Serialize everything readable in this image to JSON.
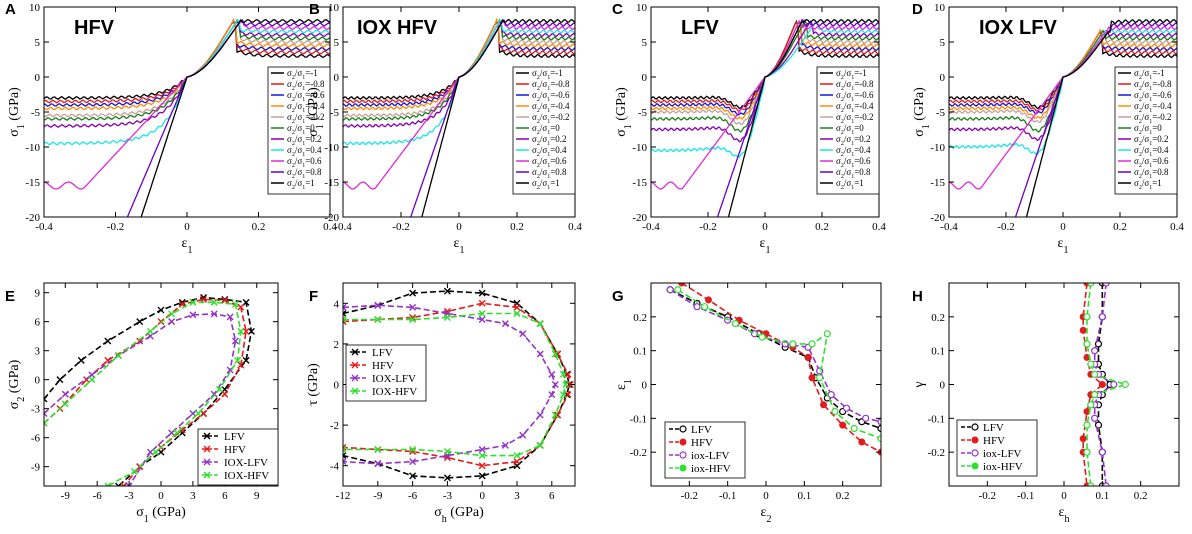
{
  "figure": {
    "panel_letters": [
      "A",
      "B",
      "C",
      "D",
      "E",
      "F",
      "G",
      "H"
    ]
  },
  "colors": {
    "ratio_palette": [
      "#000000",
      "#e41a1c",
      "#1515d8",
      "#ff8c00",
      "#c8a09a",
      "#1a7f1a",
      "#8a00b0",
      "#18e6e6",
      "#e02ad6",
      "#6a00c8"
    ],
    "LFV": "#000000",
    "HFV": "#e41a1c",
    "IOX-LFV": "#9333c7",
    "IOX-HFV": "#2ee02e"
  },
  "chart_data": [
    {
      "panel": "A",
      "type": "line",
      "title": "HFV",
      "xlabel": "ε1",
      "ylabel": "σ1 (GPa)",
      "xlim": [
        -0.4,
        0.4
      ],
      "ylim": [
        -20,
        10
      ],
      "xticks": [
        "-0.4",
        "-0.2",
        "0",
        "0.2",
        "0.4"
      ],
      "yticks": [
        "-20",
        "-15",
        "-10",
        "-5",
        "0",
        "5",
        "10"
      ],
      "legend": [
        "σ2/σ1=-1",
        "σ2/σ1=-0.8",
        "σ2/σ1=-0.6",
        "σ2/σ1=-0.4",
        "σ2/σ1=-0.2",
        "σ2/σ1=0",
        "σ2/σ1=0.2",
        "σ2/σ1=0.4",
        "σ2/σ1=0.6",
        "σ2/σ1=0.8",
        "σ2/σ1=1"
      ],
      "ratios": [
        -1,
        -0.8,
        -0.6,
        -0.4,
        -0.2,
        0,
        0.2,
        0.4,
        0.6,
        0.8,
        1
      ],
      "series_params": {
        "tension_plateau": [
          3,
          3.5,
          4,
          4.5,
          5,
          5.5,
          6,
          6.5,
          7,
          7.5,
          8
        ],
        "peak_strain": [
          0.13,
          0.13,
          0.13,
          0.13,
          0.14,
          0.14,
          0.14,
          0.14,
          0.15,
          0.15,
          0.15
        ],
        "peak_stress": [
          8,
          8,
          8,
          8,
          8,
          8,
          8,
          8,
          8,
          8,
          8
        ],
        "compression_plateau": [
          -3,
          -3.5,
          -4,
          -4.5,
          -5.5,
          -6,
          -7,
          -9.5,
          -15,
          -20,
          -20
        ],
        "compression_dip": [
          0,
          0,
          0,
          0,
          0,
          0,
          0,
          0,
          0,
          0,
          0
        ]
      }
    },
    {
      "panel": "B",
      "type": "line",
      "title": "IOX HFV",
      "xlabel": "ε1",
      "ylabel": "σ1 (GPa)",
      "xlim": [
        -0.4,
        0.4
      ],
      "ylim": [
        -20,
        10
      ],
      "xticks": [
        "-0.4",
        "-0.2",
        "0",
        "0.2",
        "0.4"
      ],
      "yticks": [
        "-20",
        "-15",
        "-10",
        "-5",
        "0",
        "5",
        "10"
      ],
      "legend": [
        "σ2/σ1=-1",
        "σ2/σ1=-0.8",
        "σ2/σ1=-0.6",
        "σ2/σ1=-0.4",
        "σ2/σ1=-0.2",
        "σ2/σ1=0",
        "σ2/σ1=0.2",
        "σ2/σ1=0.4",
        "σ2/σ1=0.6",
        "σ2/σ1=0.8",
        "σ2/σ1=1"
      ],
      "ratios": [
        -1,
        -0.8,
        -0.6,
        -0.4,
        -0.2,
        0,
        0.2,
        0.4,
        0.6,
        0.8,
        1
      ],
      "series_params": {
        "tension_plateau": [
          3,
          3.5,
          4,
          4.5,
          5,
          5.5,
          6,
          6.5,
          7,
          7.5,
          8
        ],
        "peak_strain": [
          0.13,
          0.13,
          0.13,
          0.13,
          0.14,
          0.14,
          0.14,
          0.14,
          0.15,
          0.15,
          0.15
        ],
        "peak_stress": [
          8,
          8,
          8,
          8,
          8,
          8,
          8,
          8,
          8,
          8,
          8
        ],
        "compression_plateau": [
          -3,
          -3.5,
          -4,
          -4.5,
          -5.5,
          -6,
          -7,
          -9.5,
          -15,
          -20,
          -20
        ],
        "compression_dip": [
          0,
          0,
          0,
          0,
          0,
          0,
          0,
          0,
          0,
          0,
          0
        ]
      }
    },
    {
      "panel": "C",
      "type": "line",
      "title": "LFV",
      "xlabel": "ε1",
      "ylabel": "σ1 (GPa)",
      "xlim": [
        -0.4,
        0.4
      ],
      "ylim": [
        -20,
        10
      ],
      "xticks": [
        "-0.4",
        "-0.2",
        "0",
        "0.2",
        "0.4"
      ],
      "yticks": [
        "-20",
        "-15",
        "-10",
        "-5",
        "0",
        "5",
        "10"
      ],
      "legend": [
        "σ2/σ1=-1",
        "σ2/σ1=-0.8",
        "σ2/σ1=-0.6",
        "σ2/σ1=-0.4",
        "σ2/σ1=-0.2",
        "σ2/σ1=0",
        "σ2/σ1=0.2",
        "σ2/σ1=0.4",
        "σ2/σ1=0.6",
        "σ2/σ1=0.8",
        "σ2/σ1=1"
      ],
      "ratios": [
        -1,
        -0.8,
        -0.6,
        -0.4,
        -0.2,
        0,
        0.2,
        0.4,
        0.6,
        0.8,
        1
      ],
      "series_params": {
        "tension_plateau": [
          3,
          3.5,
          4,
          4.5,
          5,
          5.5,
          6,
          6.5,
          7,
          7.5,
          8
        ],
        "peak_strain": [
          0.11,
          0.11,
          0.12,
          0.12,
          0.13,
          0.14,
          0.16,
          0.18,
          0.12,
          0.13,
          0.13
        ],
        "peak_stress": [
          8,
          8,
          8,
          8,
          8,
          8,
          8,
          8,
          8,
          8,
          8
        ],
        "compression_plateau": [
          -3,
          -3.5,
          -4,
          -4.5,
          -5,
          -6,
          -7.5,
          -10.5,
          -15,
          -20,
          -20
        ],
        "compression_dip": [
          -2,
          -2,
          -2.2,
          -2.4,
          -2.8,
          -3,
          -3.2,
          -3,
          -3,
          0,
          0
        ]
      }
    },
    {
      "panel": "D",
      "type": "line",
      "title": "IOX LFV",
      "xlabel": "ε1",
      "ylabel": "σ1 (GPa)",
      "xlim": [
        -0.4,
        0.4
      ],
      "ylim": [
        -20,
        10
      ],
      "xticks": [
        "-0.4",
        "-0.2",
        "0",
        "0.2",
        "0.4"
      ],
      "yticks": [
        "-20",
        "-15",
        "-10",
        "-5",
        "0",
        "5",
        "10"
      ],
      "legend": [
        "σ2/σ1=-1",
        "σ2/σ1=-0.8",
        "σ2/σ1=-0.6",
        "σ2/σ1=-0.4",
        "σ2/σ1=-0.2",
        "σ2/σ1=0",
        "σ2/σ1=0.2",
        "σ2/σ1=0.4",
        "σ2/σ1=0.6",
        "σ2/σ1=0.8",
        "σ2/σ1=1"
      ],
      "ratios": [
        -1,
        -0.8,
        -0.6,
        -0.4,
        -0.2,
        0,
        0.2,
        0.4,
        0.6,
        0.8,
        1
      ],
      "series_params": {
        "tension_plateau": [
          3,
          3.5,
          4,
          4.5,
          5,
          5.5,
          6,
          6.5,
          7,
          7.5,
          8
        ],
        "peak_strain": [
          0.13,
          0.13,
          0.13,
          0.13,
          0.14,
          0.14,
          0.15,
          0.15,
          0.15,
          0.16,
          0.16
        ],
        "peak_stress": [
          6.5,
          6.5,
          6.5,
          6.5,
          6.5,
          6.5,
          6.5,
          6.5,
          6.5,
          6.5,
          6.5
        ],
        "compression_plateau": [
          -3,
          -3.5,
          -4,
          -4.5,
          -5,
          -6,
          -7.5,
          -10,
          -15,
          -20,
          -20
        ],
        "compression_dip": [
          -2,
          -2,
          -2,
          -2.3,
          -2.5,
          -3,
          -3,
          -3,
          -3,
          0,
          0
        ]
      }
    },
    {
      "panel": "E",
      "type": "line",
      "xlabel": "σ1 (GPa)",
      "ylabel": "σ2 (GPa)",
      "xlim": [
        -11,
        11
      ],
      "ylim": [
        -11,
        10
      ],
      "xticks": [
        "-9",
        "-6",
        "-3",
        "0",
        "3",
        "6",
        "9"
      ],
      "yticks": [
        "-9",
        "-6",
        "-3",
        "0",
        "3",
        "6",
        "9"
      ],
      "legend": [
        "LFV",
        "HFV",
        "IOX-LFV",
        "IOX-HFV"
      ],
      "series": [
        {
          "name": "LFV",
          "x": [
            -11,
            -9.5,
            -7.5,
            -5,
            -2,
            0,
            2,
            4,
            6,
            8,
            8.5,
            8,
            6,
            4,
            2,
            0,
            -2,
            -4
          ],
          "y": [
            -2,
            0,
            2,
            4,
            6,
            7.2,
            8,
            8.5,
            8.3,
            8,
            5,
            2,
            -1,
            -3.5,
            -5.5,
            -7.5,
            -9,
            -11
          ]
        },
        {
          "name": "HFV",
          "x": [
            -11,
            -9.5,
            -7,
            -5,
            -2,
            0,
            2,
            4,
            6,
            7.5,
            8,
            7.5,
            6,
            4,
            2,
            0,
            -2,
            -3.5
          ],
          "y": [
            -4.5,
            -3,
            0,
            2,
            4,
            6,
            7.8,
            8.3,
            8.2,
            7.5,
            5,
            1.5,
            -1.5,
            -3.5,
            -5.2,
            -7,
            -9,
            -11
          ]
        },
        {
          "name": "IOX-LFV",
          "x": [
            -11,
            -9,
            -6.5,
            -4,
            -1,
            1,
            3,
            5,
            6.5,
            7,
            6.5,
            5,
            3,
            1,
            -1,
            -3
          ],
          "y": [
            -3.5,
            -1.5,
            0.5,
            2.5,
            4.5,
            6,
            6.7,
            6.8,
            6.5,
            4,
            1,
            -1.5,
            -3.5,
            -5.5,
            -7.5,
            -11
          ]
        },
        {
          "name": "IOX-HFV",
          "x": [
            -11,
            -9,
            -6.5,
            -4,
            -1,
            1,
            3,
            5,
            7,
            7.5,
            7.2,
            5.5,
            3.5,
            1.5,
            -0.5,
            -2.5,
            -5
          ],
          "y": [
            -4.5,
            -2.5,
            0,
            2.5,
            5,
            6.8,
            8,
            8,
            7.8,
            5,
            2,
            -1,
            -3.5,
            -5.5,
            -7.5,
            -9.5,
            -11
          ]
        }
      ]
    },
    {
      "panel": "F",
      "type": "line",
      "xlabel": "σh (GPa)",
      "ylabel": "τ (GPa)",
      "xlim": [
        -12,
        8
      ],
      "ylim": [
        -5,
        5
      ],
      "xticks": [
        "-12",
        "-9",
        "-6",
        "-3",
        "0",
        "3",
        "6"
      ],
      "yticks": [
        "-4",
        "-2",
        "0",
        "2",
        "4"
      ],
      "legend": [
        "LFV",
        "HFV",
        "IOX-LFV",
        "IOX-HFV"
      ],
      "series": [
        {
          "name": "LFV",
          "x": [
            -12,
            -9,
            -6,
            -3,
            0,
            3,
            5,
            6.5,
            7.3,
            7.5,
            7.3,
            6.5,
            5,
            3,
            0,
            -3,
            -6,
            -9,
            -12
          ],
          "y": [
            3.5,
            3.9,
            4.5,
            4.6,
            4.5,
            4,
            3,
            1.5,
            0.5,
            0,
            -0.5,
            -1.5,
            -3,
            -4,
            -4.5,
            -4.6,
            -4.5,
            -3.9,
            -3.5
          ]
        },
        {
          "name": "HFV",
          "x": [
            -12,
            -9,
            -6,
            -3,
            0,
            3,
            5,
            6.5,
            7.4,
            7.6,
            7.4,
            6.5,
            5,
            3,
            0,
            -3,
            -6,
            -9,
            -12
          ],
          "y": [
            3.1,
            3.2,
            3.3,
            3.6,
            4,
            3.8,
            3,
            1.5,
            0.5,
            0,
            -0.5,
            -1.5,
            -3,
            -3.8,
            -4,
            -3.6,
            -3.3,
            -3.2,
            -3.1
          ]
        },
        {
          "name": "IOX-LFV",
          "x": [
            -12,
            -9,
            -6,
            -3,
            0,
            2,
            3.5,
            5,
            6,
            6.3,
            6,
            5,
            3.5,
            2,
            0,
            -3,
            -6,
            -9,
            -12
          ],
          "y": [
            3.8,
            3.9,
            3.8,
            3.5,
            3.2,
            3,
            2.5,
            1.5,
            0.5,
            0,
            -0.5,
            -1.5,
            -2.5,
            -3,
            -3.2,
            -3.5,
            -3.8,
            -3.9,
            -3.8
          ]
        },
        {
          "name": "IOX-HFV",
          "x": [
            -12,
            -9,
            -6,
            -3,
            0,
            3,
            5,
            6.3,
            7,
            7.2,
            7,
            6.3,
            5,
            3,
            0,
            -3,
            -6,
            -9,
            -12
          ],
          "y": [
            3.2,
            3.2,
            3.2,
            3.3,
            3.5,
            3.5,
            3,
            1.5,
            0.5,
            0,
            -0.5,
            -1.5,
            -3,
            -3.5,
            -3.5,
            -3.3,
            -3.2,
            -3.2,
            -3.2
          ]
        }
      ]
    },
    {
      "panel": "G",
      "type": "line",
      "xlabel": "ε2",
      "ylabel": "ε1",
      "xlim": [
        -0.3,
        0.3
      ],
      "ylim": [
        -0.3,
        0.3
      ],
      "xticks": [
        "-0.2",
        "-0.1",
        "0",
        "0.1",
        "0.2"
      ],
      "yticks": [
        "-0.2",
        "-0.1",
        "0",
        "0.1",
        "0.2"
      ],
      "legend": [
        "LFV",
        "HFV",
        "iox-LFV",
        "iox-HFV"
      ],
      "series": [
        {
          "name": "LFV",
          "x": [
            -0.25,
            -0.18,
            -0.1,
            -0.02,
            0.05,
            0.11,
            0.13,
            0.16,
            0.2,
            0.25,
            0.3
          ],
          "y": [
            0.28,
            0.24,
            0.2,
            0.15,
            0.11,
            0.08,
            0.02,
            -0.04,
            -0.08,
            -0.11,
            -0.13
          ]
        },
        {
          "name": "HFV",
          "x": [
            -0.22,
            -0.15,
            -0.07,
            0,
            0.07,
            0.11,
            0.12,
            0.15,
            0.2,
            0.25,
            0.3
          ],
          "y": [
            0.3,
            0.25,
            0.19,
            0.15,
            0.11,
            0.08,
            0.02,
            -0.06,
            -0.12,
            -0.17,
            -0.2
          ]
        },
        {
          "name": "iox-LFV",
          "x": [
            -0.25,
            -0.18,
            -0.1,
            -0.03,
            0.05,
            0.11,
            0.14,
            0.17,
            0.21,
            0.26,
            0.3
          ],
          "y": [
            0.28,
            0.23,
            0.19,
            0.15,
            0.12,
            0.11,
            0.04,
            -0.03,
            -0.07,
            -0.1,
            -0.11
          ]
        },
        {
          "name": "iox-HFV",
          "x": [
            -0.23,
            -0.16,
            -0.08,
            -0.01,
            0.07,
            0.12,
            0.16,
            0.14,
            0.18,
            0.23,
            0.3
          ],
          "y": [
            0.28,
            0.23,
            0.18,
            0.14,
            0.12,
            0.12,
            0.15,
            0.02,
            -0.08,
            -0.13,
            -0.16
          ]
        }
      ]
    },
    {
      "panel": "H",
      "type": "line",
      "xlabel": "εh",
      "ylabel": "γ",
      "xlim": [
        -0.3,
        0.3
      ],
      "ylim": [
        -0.3,
        0.3
      ],
      "xticks": [
        "-0.2",
        "-0.1",
        "0",
        "0.1",
        "0.2"
      ],
      "yticks": [
        "-0.2",
        "-0.1",
        "0",
        "0.1",
        "0.2"
      ],
      "legend": [
        "LFV",
        "HFV",
        "iox-LFV",
        "iox-HFV"
      ],
      "series": [
        {
          "name": "LFV",
          "x": [
            0.1,
            0.1,
            0.09,
            0.09,
            0.1,
            0.12,
            0.1,
            0.09,
            0.09,
            0.1,
            0.1
          ],
          "y": [
            0.3,
            0.2,
            0.12,
            0.06,
            0.03,
            0,
            -0.03,
            -0.06,
            -0.12,
            -0.2,
            -0.3
          ]
        },
        {
          "name": "HFV",
          "x": [
            0.06,
            0.05,
            0.05,
            0.06,
            0.07,
            0.1,
            0.07,
            0.06,
            0.05,
            0.05,
            0.06
          ],
          "y": [
            0.3,
            0.2,
            0.16,
            0.08,
            0.03,
            0,
            -0.03,
            -0.08,
            -0.16,
            -0.2,
            -0.3
          ]
        },
        {
          "name": "iox-LFV",
          "x": [
            0.11,
            0.1,
            0.08,
            0.08,
            0.09,
            0.13,
            0.09,
            0.08,
            0.08,
            0.1,
            0.11
          ],
          "y": [
            0.3,
            0.2,
            0.1,
            0.06,
            0.03,
            0,
            -0.03,
            -0.06,
            -0.1,
            -0.2,
            -0.3
          ]
        },
        {
          "name": "iox-HFV",
          "x": [
            0.07,
            0.06,
            0.06,
            0.07,
            0.08,
            0.16,
            0.08,
            0.07,
            0.06,
            0.06,
            0.07
          ],
          "y": [
            0.3,
            0.2,
            0.12,
            0.06,
            0.03,
            0,
            -0.03,
            -0.06,
            -0.12,
            -0.2,
            -0.3
          ]
        }
      ]
    }
  ]
}
